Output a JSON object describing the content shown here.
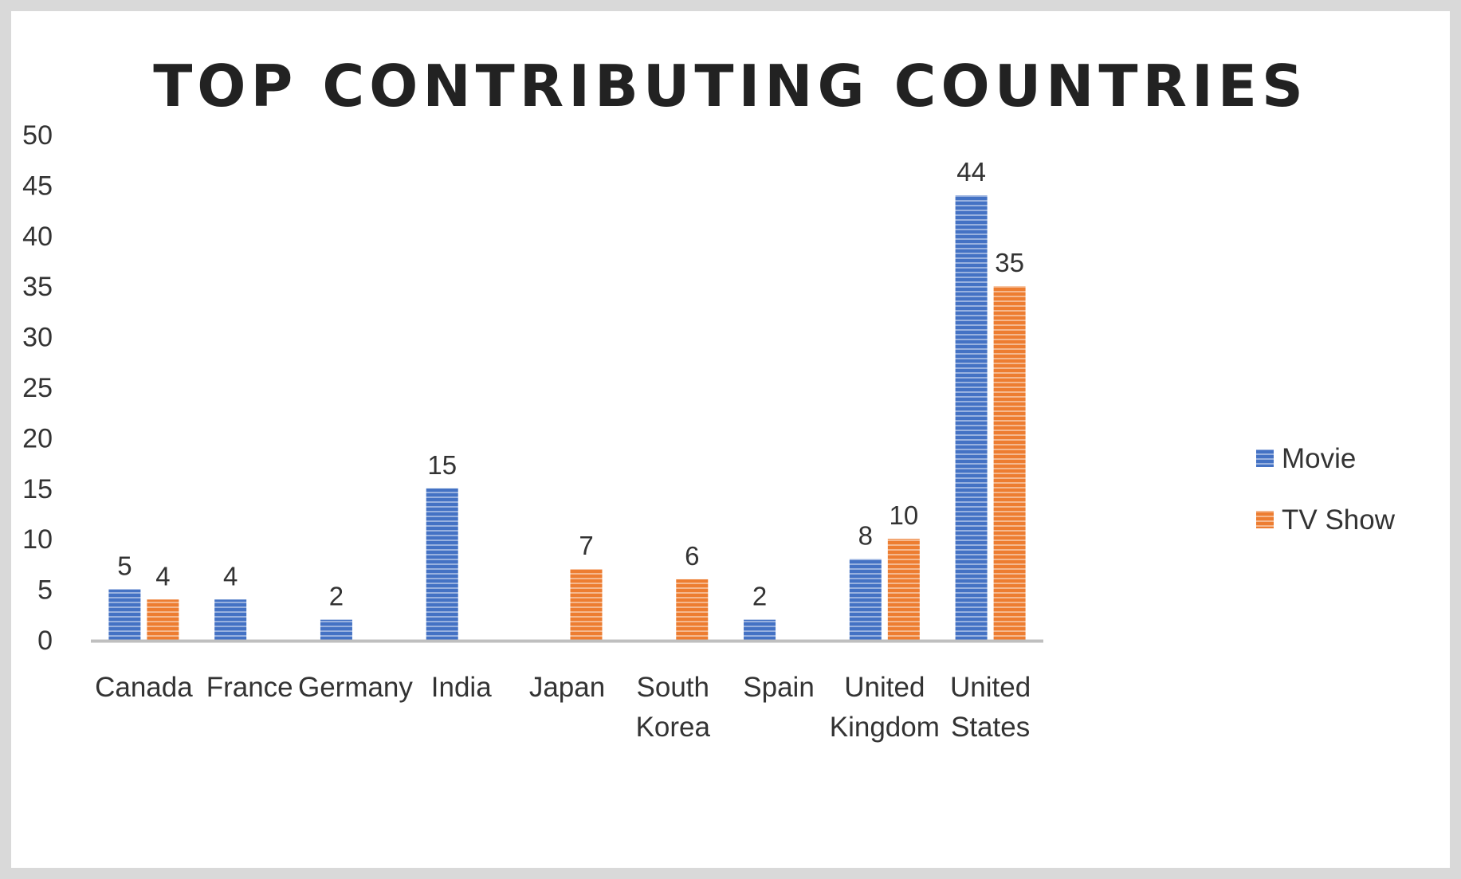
{
  "chart_data": {
    "type": "bar",
    "title": "TOP CONTRIBUTING COUNTRIES",
    "xlabel": "",
    "ylabel": "",
    "ylim": [
      0,
      50
    ],
    "yticks": [
      0,
      5,
      10,
      15,
      20,
      25,
      30,
      35,
      40,
      45,
      50
    ],
    "categories": [
      [
        "Canada"
      ],
      [
        "France"
      ],
      [
        "Germany"
      ],
      [
        "India"
      ],
      [
        "Japan"
      ],
      [
        "South",
        "Korea"
      ],
      [
        "Spain"
      ],
      [
        "United",
        "Kingdom"
      ],
      [
        "United",
        "States"
      ]
    ],
    "series": [
      {
        "name": "Movie",
        "color": "#4472c4",
        "values": [
          5,
          4,
          2,
          15,
          null,
          null,
          2,
          8,
          44
        ]
      },
      {
        "name": "TV Show",
        "color": "#ed7d31",
        "values": [
          4,
          null,
          null,
          null,
          7,
          6,
          null,
          10,
          35
        ]
      }
    ],
    "data_labels": true,
    "grid": false,
    "legend_position": "right",
    "bar_pattern": "horizontal-stripes"
  }
}
